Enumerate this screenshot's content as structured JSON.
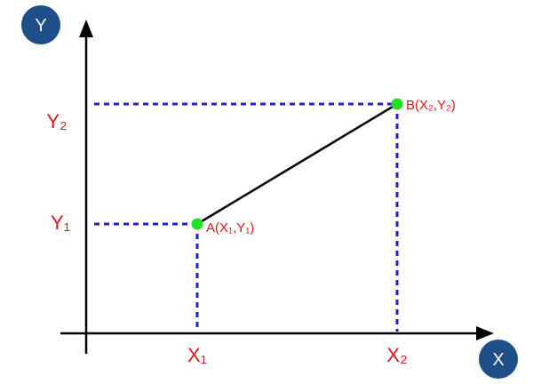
{
  "axes": {
    "x_badge": "X",
    "y_badge": "Y"
  },
  "labels": {
    "x1": "X₁",
    "x2": "X₂",
    "y1": "Y₁",
    "y2": "Y₂"
  },
  "points": {
    "a_label": "A(X₁,Y₁)",
    "b_label": "B(X₂,Y₂)"
  },
  "colors": {
    "label_red": "#e0161b",
    "guide_blue": "#1f1fd6",
    "point_green": "#22e022",
    "badge_navy": "#1e4f8a"
  }
}
